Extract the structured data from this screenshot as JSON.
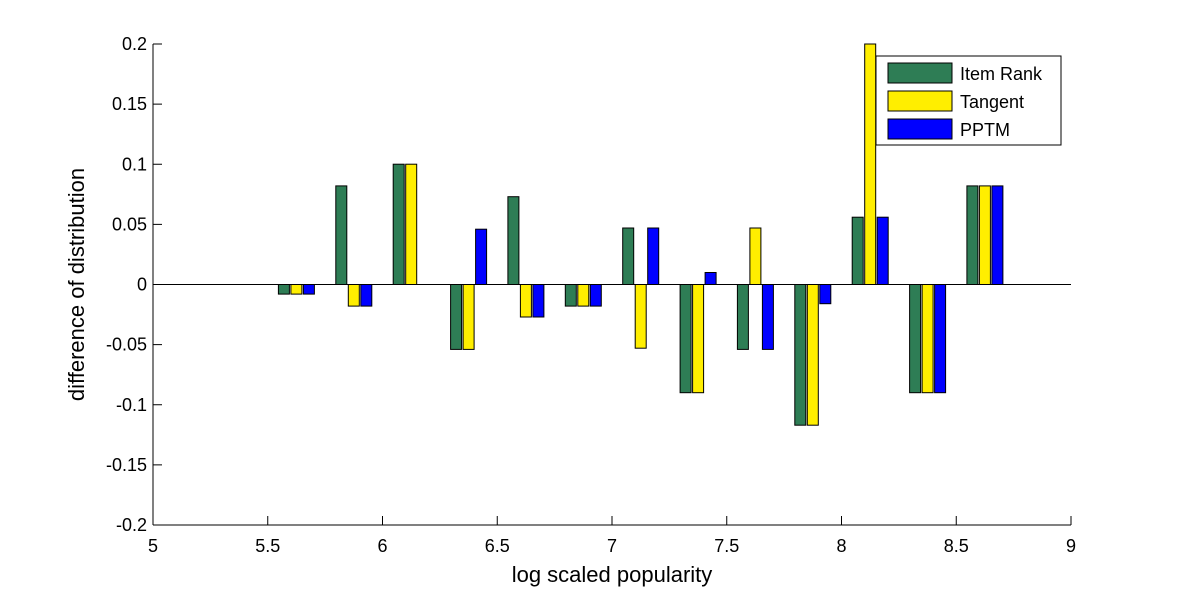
{
  "chart_data": {
    "type": "bar",
    "title": "",
    "xlabel": "log scaled popularity",
    "ylabel": "difference of distribution",
    "xlim": [
      5,
      9
    ],
    "ylim": [
      -0.2,
      0.2
    ],
    "xticks": [
      "5",
      "5.5",
      "6",
      "6.5",
      "7",
      "7.5",
      "8",
      "8.5",
      "9"
    ],
    "yticks": [
      "-0.2",
      "-0.15",
      "-0.1",
      "-0.05",
      "0",
      "0.05",
      "0.1",
      "0.15",
      "0.2"
    ],
    "x": [
      5.625,
      5.875,
      6.125,
      6.375,
      6.625,
      6.875,
      7.125,
      7.375,
      7.625,
      7.875,
      8.125,
      8.375,
      8.625
    ],
    "series": [
      {
        "name": "Item Rank",
        "color": "#2e7d55",
        "values": [
          -0.008,
          0.082,
          0.1,
          -0.054,
          0.073,
          -0.018,
          0.047,
          -0.09,
          -0.054,
          -0.117,
          0.056,
          -0.09,
          0.082
        ]
      },
      {
        "name": "Tangent",
        "color": "#ffee00",
        "values": [
          -0.008,
          -0.018,
          0.1,
          -0.054,
          -0.027,
          -0.018,
          -0.053,
          -0.09,
          0.047,
          -0.117,
          0.2,
          -0.09,
          0.082
        ]
      },
      {
        "name": "PPTM",
        "color": "#0000ff",
        "values": [
          -0.008,
          -0.018,
          null,
          0.046,
          -0.027,
          -0.018,
          0.047,
          0.01,
          -0.054,
          -0.016,
          0.056,
          -0.09,
          0.082
        ]
      }
    ],
    "grid": false,
    "legend_position": "top-right"
  }
}
